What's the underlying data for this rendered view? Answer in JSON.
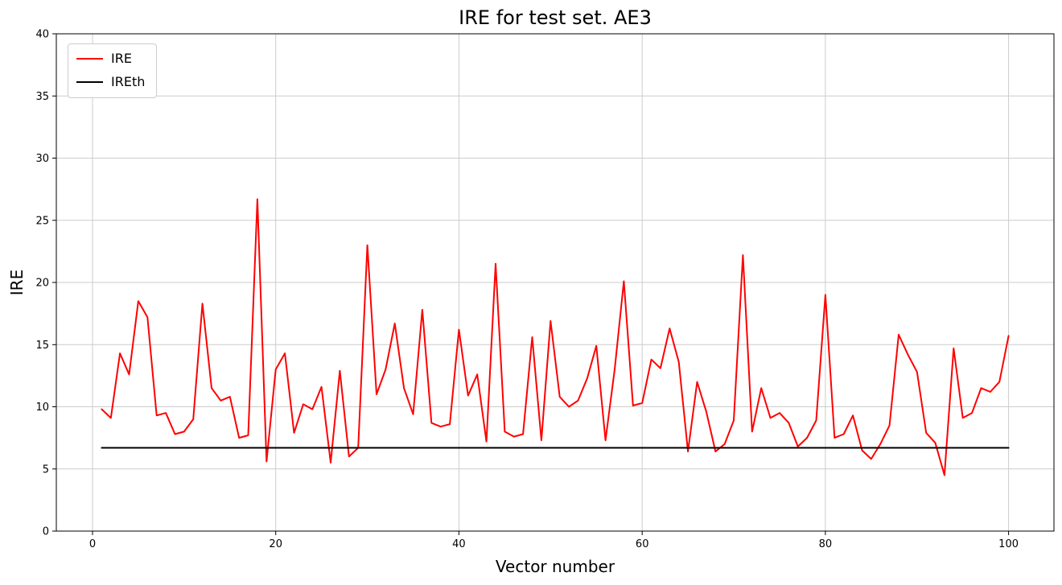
{
  "chart_data": {
    "type": "line",
    "title": "IRE for test set. AE3",
    "xlabel": "Vector number",
    "ylabel": "IRE",
    "xlim": [
      -3.95,
      104.95
    ],
    "ylim": [
      0,
      40
    ],
    "xticks": [
      0,
      20,
      40,
      60,
      80,
      100
    ],
    "yticks": [
      0,
      5,
      10,
      15,
      20,
      25,
      30,
      35,
      40
    ],
    "grid": true,
    "grid_color": "#cccccc",
    "legend_position": "upper left",
    "series": [
      {
        "name": "IRE",
        "color": "#ff0000",
        "x": [
          1,
          2,
          3,
          4,
          5,
          6,
          7,
          8,
          9,
          10,
          11,
          12,
          13,
          14,
          15,
          16,
          17,
          18,
          19,
          20,
          21,
          22,
          23,
          24,
          25,
          26,
          27,
          28,
          29,
          30,
          31,
          32,
          33,
          34,
          35,
          36,
          37,
          38,
          39,
          40,
          41,
          42,
          43,
          44,
          45,
          46,
          47,
          48,
          49,
          50,
          51,
          52,
          53,
          54,
          55,
          56,
          57,
          58,
          59,
          60,
          61,
          62,
          63,
          64,
          65,
          66,
          67,
          68,
          69,
          70,
          71,
          72,
          73,
          74,
          75,
          76,
          77,
          78,
          79,
          80,
          81,
          82,
          83,
          84,
          85,
          86,
          87,
          88,
          89,
          90,
          91,
          92,
          93,
          94,
          95,
          96,
          97,
          98,
          99,
          100
        ],
        "y": [
          9.8,
          9.1,
          14.3,
          12.6,
          18.5,
          17.2,
          9.3,
          9.5,
          7.8,
          8.0,
          9.0,
          18.3,
          11.5,
          10.5,
          10.8,
          7.5,
          7.7,
          26.7,
          5.6,
          13.0,
          14.3,
          7.9,
          10.2,
          9.8,
          11.6,
          5.5,
          12.9,
          6.0,
          6.7,
          23.0,
          11.0,
          13.0,
          16.7,
          11.5,
          9.4,
          17.8,
          8.7,
          8.4,
          8.6,
          16.2,
          10.9,
          12.6,
          7.2,
          21.5,
          8.0,
          7.6,
          7.8,
          15.6,
          7.3,
          16.9,
          10.8,
          10.0,
          10.5,
          12.3,
          14.9,
          7.3,
          13.0,
          20.1,
          10.1,
          10.3,
          13.8,
          13.1,
          16.3,
          13.6,
          6.4,
          12.0,
          9.6,
          6.4,
          7.0,
          8.9,
          22.2,
          8.0,
          11.5,
          9.1,
          9.5,
          8.7,
          6.8,
          7.5,
          8.9,
          19.0,
          7.5,
          7.8,
          9.3,
          6.5,
          5.8,
          7.0,
          8.5,
          15.8,
          14.2,
          12.8,
          7.9,
          7.1,
          4.5,
          14.7,
          9.1,
          9.5,
          11.5,
          11.2,
          12.0,
          15.7
        ]
      },
      {
        "name": "IREth",
        "color": "#000000",
        "x": [
          1,
          100
        ],
        "y": [
          6.7,
          6.7
        ]
      }
    ]
  }
}
